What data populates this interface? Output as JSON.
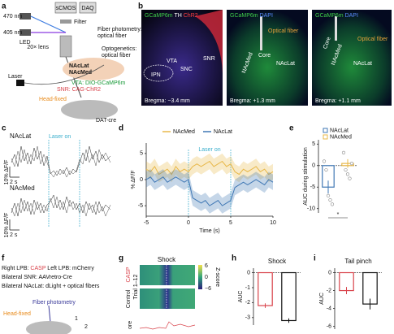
{
  "panel_labels": [
    "a",
    "b",
    "c",
    "d",
    "e",
    "f",
    "g",
    "h",
    "i"
  ],
  "a": {
    "camera": "sCMOS",
    "daq": "DAQ",
    "wl1": "470 nm",
    "wl2": "405 nm",
    "filter": "Filter",
    "led": "LED",
    "lens": "20× lens",
    "fp": "Fiber photometry:",
    "fp2": "optical fiber",
    "og": "Optogenetics:",
    "og2": "optical fiber",
    "lat": "NAcLat",
    "med": "NAcMed",
    "vta": "VTA: DIO-GCaMP6m",
    "snr": "SNR: CAG-ChR2",
    "laser": "Laser",
    "head": "Head-fixed",
    "mouse": "DAT-cre"
  },
  "b": {
    "images": [
      {
        "stains": [
          "GCaMP6m",
          "TH",
          "ChR2"
        ],
        "regions": [
          "VTA",
          "SNC",
          "SNR",
          "IPN"
        ],
        "bregma": "Bregma: −3.4 mm"
      },
      {
        "stains": [
          "GCaMP6m",
          "DAPI"
        ],
        "fiber": "Optical fiber",
        "regions": [
          "Core",
          "NAcMed",
          "NAcLat"
        ],
        "bregma": "Bregma: +1.3 mm"
      },
      {
        "stains": [
          "GCaMP6m",
          "DAPI"
        ],
        "fiber": "Optical fiber",
        "regions": [
          "Core",
          "NAcMed",
          "NAcLat"
        ],
        "bregma": "Bregma: +1.1 mm"
      }
    ]
  },
  "c": {
    "top": "NAcLat",
    "bottom": "NAcMed",
    "laser": "Laser on",
    "yscale": "10% ΔF/F",
    "xscale": "2 s"
  },
  "f": {
    "l1a": "Right LPB: ",
    "l1b": "CASP",
    "l1c": " Left LPB: mCherry",
    "l2": "Bilateral SNR: AAVretro-Cre",
    "l3": "Bilateral NAcLat: dLight + optical fibers",
    "fp": "Fiber photometry",
    "head": "Head-fixed",
    "n1": "1",
    "n2": "2"
  },
  "g": {
    "title": "Shock",
    "casp": "CASP",
    "control": "Control",
    "trial": "Trial 1–12",
    "cb": [
      "6",
      "0",
      "−6"
    ],
    "cblabel": "Z-score",
    "cut": "ore"
  },
  "chart_data": [
    {
      "type": "line",
      "ylabel": "% ΔF/F",
      "xlabel": "Time (s)",
      "annotation": "Laser on",
      "laser": [
        0,
        5
      ],
      "x": [
        -5,
        -4.5,
        -4,
        -3.5,
        -3,
        -2.5,
        -2,
        -1.5,
        -1,
        -0.5,
        0,
        0.5,
        1,
        1.5,
        2,
        2.5,
        3,
        3.5,
        4,
        4.5,
        5,
        5.5,
        6,
        6.5,
        7,
        7.5,
        8,
        8.5,
        9,
        9.5,
        10
      ],
      "series": [
        {
          "name": "NAcMed",
          "color": "#e8b84a",
          "sem": 1.5,
          "values": [
            2,
            1.5,
            2.5,
            1,
            1.5,
            2,
            1,
            2.5,
            1.5,
            2,
            1.5,
            2.5,
            3,
            2.5,
            3,
            3.5,
            2.5,
            3,
            3.5,
            2.5,
            3,
            1.5,
            1,
            2,
            1.5,
            2,
            2.5,
            1.5,
            2,
            1,
            1.5
          ]
        },
        {
          "name": "NAcLat",
          "color": "#3f77b4",
          "sem": 1.5,
          "values": [
            0,
            0.5,
            -0.5,
            0,
            0.5,
            -0.5,
            0,
            0.5,
            0,
            -0.5,
            0,
            -3.5,
            -4,
            -4.5,
            -4,
            -5,
            -4.5,
            -4,
            -5,
            -4.5,
            -4,
            -1.5,
            -1,
            -0.5,
            -1,
            -0.5,
            0,
            -0.5,
            -1,
            0,
            -0.5
          ]
        }
      ],
      "xlim": [
        -5,
        10
      ],
      "xticks": [
        -5,
        0,
        5,
        10
      ],
      "ylim": [
        -7,
        7
      ],
      "yticks": [
        -5,
        0,
        5
      ]
    },
    {
      "type": "bar",
      "ylabel": "AUC during stimulation",
      "annotation": "*",
      "categories": [
        "NAcLat",
        "NAcMed"
      ],
      "colors": [
        "#3f77b4",
        "#e8b84a"
      ],
      "values": [
        -5,
        0.5
      ],
      "errors": [
        1.5,
        1
      ],
      "points": [
        [
          1,
          -1,
          -7,
          -8,
          -9
        ],
        [
          3,
          -1,
          -2,
          -3,
          0.5
        ]
      ],
      "ylim": [
        -11,
        6
      ],
      "yticks": [
        5,
        0,
        -5,
        -10
      ]
    },
    {
      "type": "bar",
      "title": "Shock",
      "ylabel": "AUC",
      "colors": [
        "#d9434b",
        "#111111"
      ],
      "values": [
        -2.2,
        -3.2
      ],
      "errors": [
        0.15,
        0.15
      ],
      "ylim": [
        -3.5,
        0.3
      ],
      "yticks": [
        0,
        -1,
        -2,
        -3
      ]
    },
    {
      "type": "bar",
      "title": "Tail pinch",
      "ylabel": "AUC",
      "colors": [
        "#d9434b",
        "#111111"
      ],
      "values": [
        -2,
        -3.5
      ],
      "errors": [
        0.4,
        0.6
      ],
      "ylim": [
        -6.3,
        0.5
      ],
      "yticks": [
        0,
        -2,
        -4,
        -6
      ]
    }
  ]
}
